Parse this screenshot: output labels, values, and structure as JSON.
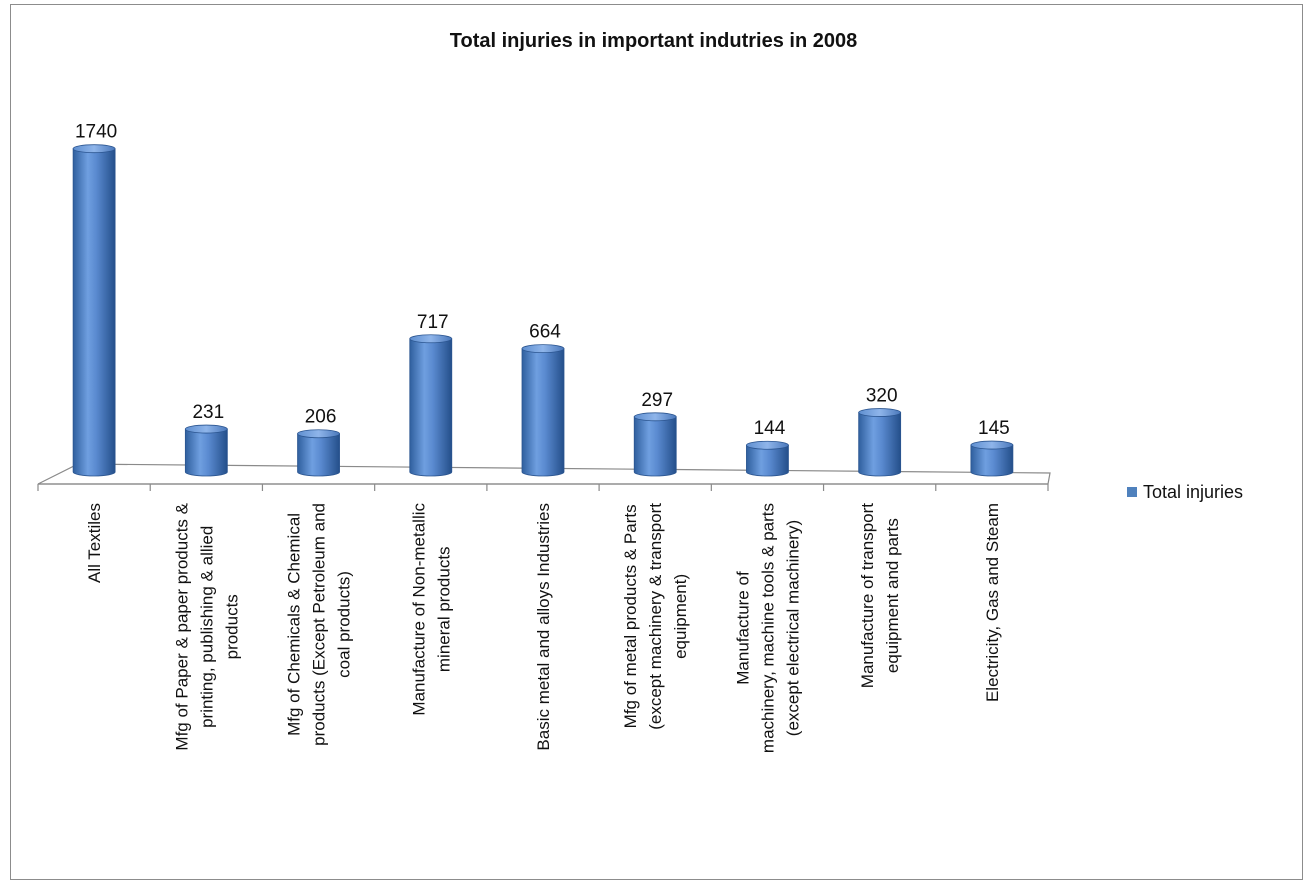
{
  "chart_data": {
    "type": "bar",
    "title": "Total injuries in important indutries in 2008",
    "categories": [
      [
        "All Textiles"
      ],
      [
        "Mfg of Paper & paper products &",
        "printing, publishing & allied",
        "products"
      ],
      [
        "Mfg of Chemicals & Chemical",
        "products (Except Petroleum and",
        "coal products)"
      ],
      [
        "Manufacture of Non-metallic",
        "mineral products"
      ],
      [
        "Basic metal and alloys Industries"
      ],
      [
        "Mfg of metal products & Parts",
        "(except machinery & transport",
        "equipment)"
      ],
      [
        "Manufacture of",
        "machinery, machine tools & parts",
        "(except electrical machinery)"
      ],
      [
        "Manufacture of transport",
        "equipment and parts"
      ],
      [
        "Electricity, Gas and Steam"
      ]
    ],
    "series": [
      {
        "name": "Total injuries",
        "values": [
          1740,
          231,
          206,
          717,
          664,
          297,
          144,
          320,
          145
        ]
      }
    ],
    "value_labels": [
      "1740",
      "231",
      "206",
      "717",
      "664",
      "297",
      "144",
      "320",
      "145"
    ],
    "ylim": [
      0,
      1800
    ],
    "grid": false,
    "legend_position": "right",
    "bar_color": "#4f81bd"
  }
}
